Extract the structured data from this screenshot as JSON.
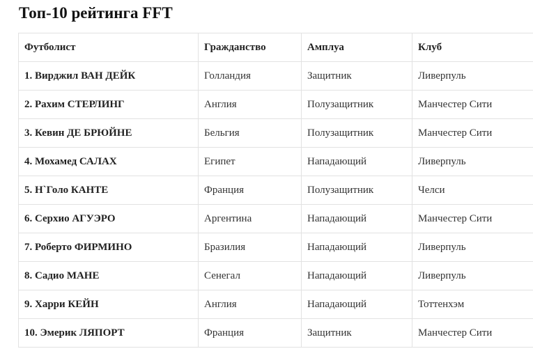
{
  "title": "Топ-10 рейтинга FFT",
  "table": {
    "headers": [
      "Футболист",
      "Гражданство",
      "Амплуа",
      "Клуб"
    ],
    "rows": [
      [
        "1. Вирджил ВАН ДЕЙК",
        "Голландия",
        "Защитник",
        "Ливерпуль"
      ],
      [
        "2. Рахим СТЕРЛИНГ",
        "Англия",
        "Полузащитник",
        "Манчестер Сити"
      ],
      [
        "3. Кевин ДЕ БРЮЙНЕ",
        "Бельгия",
        "Полузащитник",
        "Манчестер Сити"
      ],
      [
        "4. Мохамед САЛАХ",
        "Египет",
        "Нападающий",
        "Ливерпуль"
      ],
      [
        "5. Н`Голо КАНТЕ",
        "Франция",
        "Полузащитник",
        "Челси"
      ],
      [
        "6. Серхио АГУЭРО",
        "Аргентина",
        "Нападающий",
        "Манчестер Сити"
      ],
      [
        "7. Роберто ФИРМИНО",
        "Бразилия",
        "Нападающий",
        "Ливерпуль"
      ],
      [
        "8. Садио МАНЕ",
        "Сенегал",
        "Нападающий",
        "Ливерпуль"
      ],
      [
        "9. Харри КЕЙН",
        "Англия",
        "Нападающий",
        "Тоттенхэм"
      ],
      [
        "10. Эмерик ЛЯПОРТ",
        "Франция",
        "Защитник",
        "Манчестер Сити"
      ]
    ]
  }
}
